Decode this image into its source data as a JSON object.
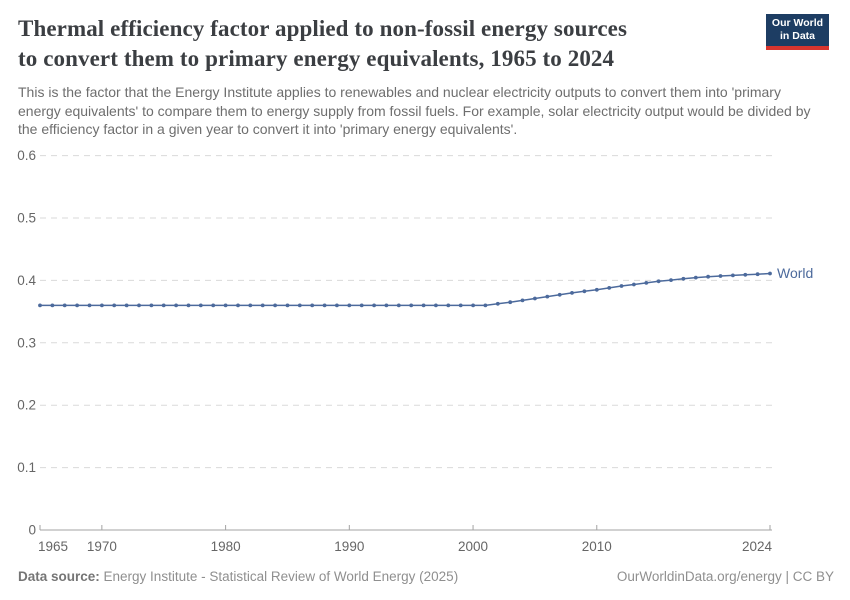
{
  "header": {
    "title_line1": "Thermal efficiency factor applied to non-fossil energy sources",
    "title_line2": "to convert them to primary energy equivalents, 1965 to 2024",
    "subtitle": "This is the factor that the Energy Institute applies to renewables and nuclear electricity outputs to convert them into 'primary energy equivalents' to compare them to energy supply from fossil fuels. For example, solar electricity output would be divided by the efficiency factor in a given year to convert it into 'primary energy equivalents'.",
    "logo": {
      "line1": "Our World",
      "line2": "in Data",
      "bg_color": "#1d3d63",
      "accent_color": "#d8352e"
    }
  },
  "chart_data": {
    "type": "line",
    "title": "Thermal efficiency factor applied to non-fossil energy sources to convert them to primary energy equivalents, 1965 to 2024",
    "xlabel": "",
    "ylabel": "",
    "xlim": [
      1965,
      2024
    ],
    "ylim": [
      0,
      0.6
    ],
    "x_ticks": [
      1965,
      1970,
      1980,
      1990,
      2000,
      2010,
      2024
    ],
    "y_ticks": [
      0,
      0.1,
      0.2,
      0.3,
      0.4,
      0.5,
      0.6
    ],
    "grid": "horizontal-dashed",
    "legend_position": "end-of-line-label",
    "series": [
      {
        "name": "World",
        "color": "#4C6A9C",
        "x": [
          1965,
          1966,
          1967,
          1968,
          1969,
          1970,
          1971,
          1972,
          1973,
          1974,
          1975,
          1976,
          1977,
          1978,
          1979,
          1980,
          1981,
          1982,
          1983,
          1984,
          1985,
          1986,
          1987,
          1988,
          1989,
          1990,
          1991,
          1992,
          1993,
          1994,
          1995,
          1996,
          1997,
          1998,
          1999,
          2000,
          2001,
          2002,
          2003,
          2004,
          2005,
          2006,
          2007,
          2008,
          2009,
          2010,
          2011,
          2012,
          2013,
          2014,
          2015,
          2016,
          2017,
          2018,
          2019,
          2020,
          2021,
          2022,
          2023,
          2024
        ],
        "values": [
          0.36,
          0.36,
          0.36,
          0.36,
          0.36,
          0.36,
          0.36,
          0.36,
          0.36,
          0.36,
          0.36,
          0.36,
          0.36,
          0.36,
          0.36,
          0.36,
          0.36,
          0.36,
          0.36,
          0.36,
          0.36,
          0.36,
          0.36,
          0.36,
          0.36,
          0.36,
          0.36,
          0.36,
          0.36,
          0.36,
          0.36,
          0.36,
          0.36,
          0.36,
          0.36,
          0.36,
          0.36,
          0.3625,
          0.365,
          0.368,
          0.371,
          0.374,
          0.377,
          0.38,
          0.3825,
          0.385,
          0.388,
          0.391,
          0.3935,
          0.396,
          0.3985,
          0.4005,
          0.4025,
          0.4045,
          0.406,
          0.407,
          0.408,
          0.409,
          0.41,
          0.411
        ]
      }
    ],
    "end_label": "World"
  },
  "footer": {
    "datasource_label": "Data source:",
    "datasource_text": " Energy Institute - Statistical Review of World Energy (2025)",
    "credit": "OurWorldinData.org/energy | CC BY"
  },
  "colors": {
    "line": "#4C6A9C",
    "grid": "#dadada",
    "axis": "#a3a3a3",
    "tick_label": "#666666",
    "title": "#3b3e42",
    "subtitle": "#6e6e6e",
    "footer": "#8f8f8f"
  }
}
